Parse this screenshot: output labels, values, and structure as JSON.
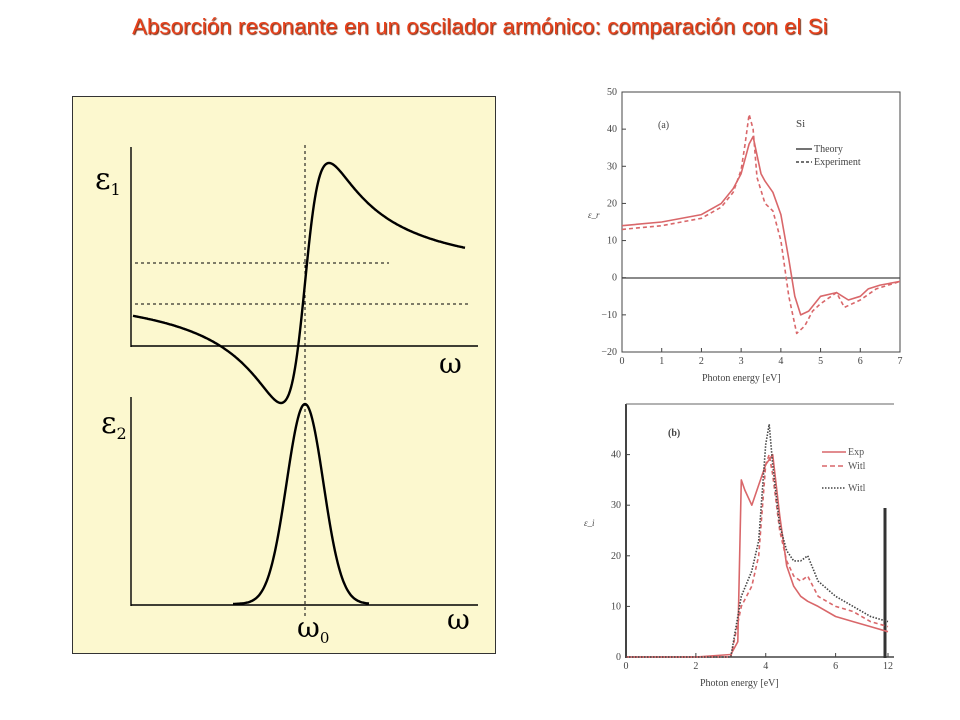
{
  "title": "Absorción resonante en un oscilador armónico: comparación con el Si",
  "chart_data": [
    {
      "type": "line",
      "labels": {
        "eps1_main": "ε",
        "eps1_sub": "1",
        "eps2_main": "ε",
        "eps2_sub": "2",
        "omega_upper": "ω",
        "omega_lower": "ω",
        "omega0_main": "ω",
        "omega0_sub": "0"
      }
    },
    {
      "type": "line",
      "panel_label": "(a)",
      "material": "Si",
      "legend": [
        "Theory",
        "Experiment"
      ],
      "legend_position": "top-right",
      "xlabel": "Photon energy  [eV]",
      "ylabel": "ε_r",
      "xlim": [
        0,
        7
      ],
      "ylim": [
        -20,
        50
      ],
      "xticks": [
        "0",
        "1",
        "2",
        "3",
        "4",
        "5",
        "6",
        "7"
      ],
      "yticks": [
        "−20",
        "−10",
        "0",
        "10",
        "20",
        "30",
        "40",
        "50"
      ],
      "series": [
        {
          "name": "Theory",
          "style": "solid",
          "color": "#d9676a",
          "x": [
            0,
            1,
            2,
            2.5,
            2.8,
            3.0,
            3.1,
            3.2,
            3.3,
            3.4,
            3.5,
            3.6,
            3.8,
            4.0,
            4.2,
            4.35,
            4.5,
            4.7,
            5.0,
            5.4,
            5.7,
            6.0,
            6.2,
            6.5,
            7.0
          ],
          "y": [
            14,
            15,
            17,
            20,
            24,
            28,
            32,
            36,
            38,
            33,
            28,
            26,
            23,
            17,
            5,
            -5,
            -10,
            -9,
            -5,
            -4,
            -6,
            -5,
            -3,
            -2,
            -1
          ]
        },
        {
          "name": "Experiment",
          "style": "dashed",
          "color": "#d9676a",
          "x": [
            0,
            1,
            2,
            2.5,
            2.8,
            3.0,
            3.1,
            3.2,
            3.3,
            3.4,
            3.6,
            3.8,
            4.0,
            4.2,
            4.4,
            4.6,
            4.8,
            5.0,
            5.4,
            5.6,
            6.0,
            6.4,
            7.0
          ],
          "y": [
            13,
            14,
            16,
            19,
            23,
            29,
            36,
            44,
            40,
            27,
            20,
            18,
            10,
            -5,
            -15,
            -13,
            -9,
            -7,
            -4,
            -8,
            -6,
            -3,
            -1
          ]
        }
      ]
    },
    {
      "type": "line",
      "panel_label": "(b)",
      "legend": [
        "Exp",
        "Witl",
        "Witl"
      ],
      "legend_position": "top-right",
      "xlabel": "Photon energy  [eV]",
      "ylabel": "ε_i",
      "xlim": [
        0,
        7.5
      ],
      "ylim": [
        0,
        50
      ],
      "xticks": [
        "0",
        "2",
        "4",
        "6",
        "12"
      ],
      "yticks": [
        "0",
        "10",
        "20",
        "30",
        "40"
      ],
      "series": [
        {
          "name": "Exp",
          "style": "solid",
          "color": "#d9676a",
          "x": [
            0,
            1,
            2,
            3.0,
            3.2,
            3.3,
            3.4,
            3.6,
            3.8,
            4.0,
            4.2,
            4.4,
            4.6,
            4.8,
            5.0,
            5.2,
            5.5,
            6.0,
            6.5,
            7.0,
            7.5
          ],
          "y": [
            0,
            0,
            0,
            0.5,
            3,
            35,
            33,
            30,
            34,
            38,
            40,
            28,
            18,
            14,
            12,
            11,
            10,
            8,
            7,
            6,
            5
          ]
        },
        {
          "name": "Witl",
          "style": "dashed",
          "color": "#d9676a",
          "x": [
            0,
            1,
            2,
            3.0,
            3.3,
            3.6,
            3.8,
            4.0,
            4.1,
            4.2,
            4.4,
            4.6,
            4.8,
            5.0,
            5.2,
            5.5,
            6.0,
            6.5,
            7.0,
            7.5
          ],
          "y": [
            0,
            0,
            0,
            0,
            10,
            14,
            20,
            38,
            40,
            36,
            25,
            19,
            16,
            15,
            16,
            12,
            10,
            9,
            7,
            6
          ]
        },
        {
          "name": "Witl",
          "style": "dotted",
          "color": "#444444",
          "x": [
            0,
            1,
            2,
            3.0,
            3.3,
            3.6,
            3.8,
            4.0,
            4.1,
            4.2,
            4.4,
            4.6,
            4.8,
            5.0,
            5.2,
            5.5,
            6.0,
            6.5,
            7.0,
            7.5
          ],
          "y": [
            0,
            0,
            0,
            0,
            12,
            17,
            23,
            42,
            46,
            38,
            26,
            21,
            19,
            19,
            20,
            15,
            12,
            10,
            8,
            7
          ]
        }
      ]
    }
  ]
}
